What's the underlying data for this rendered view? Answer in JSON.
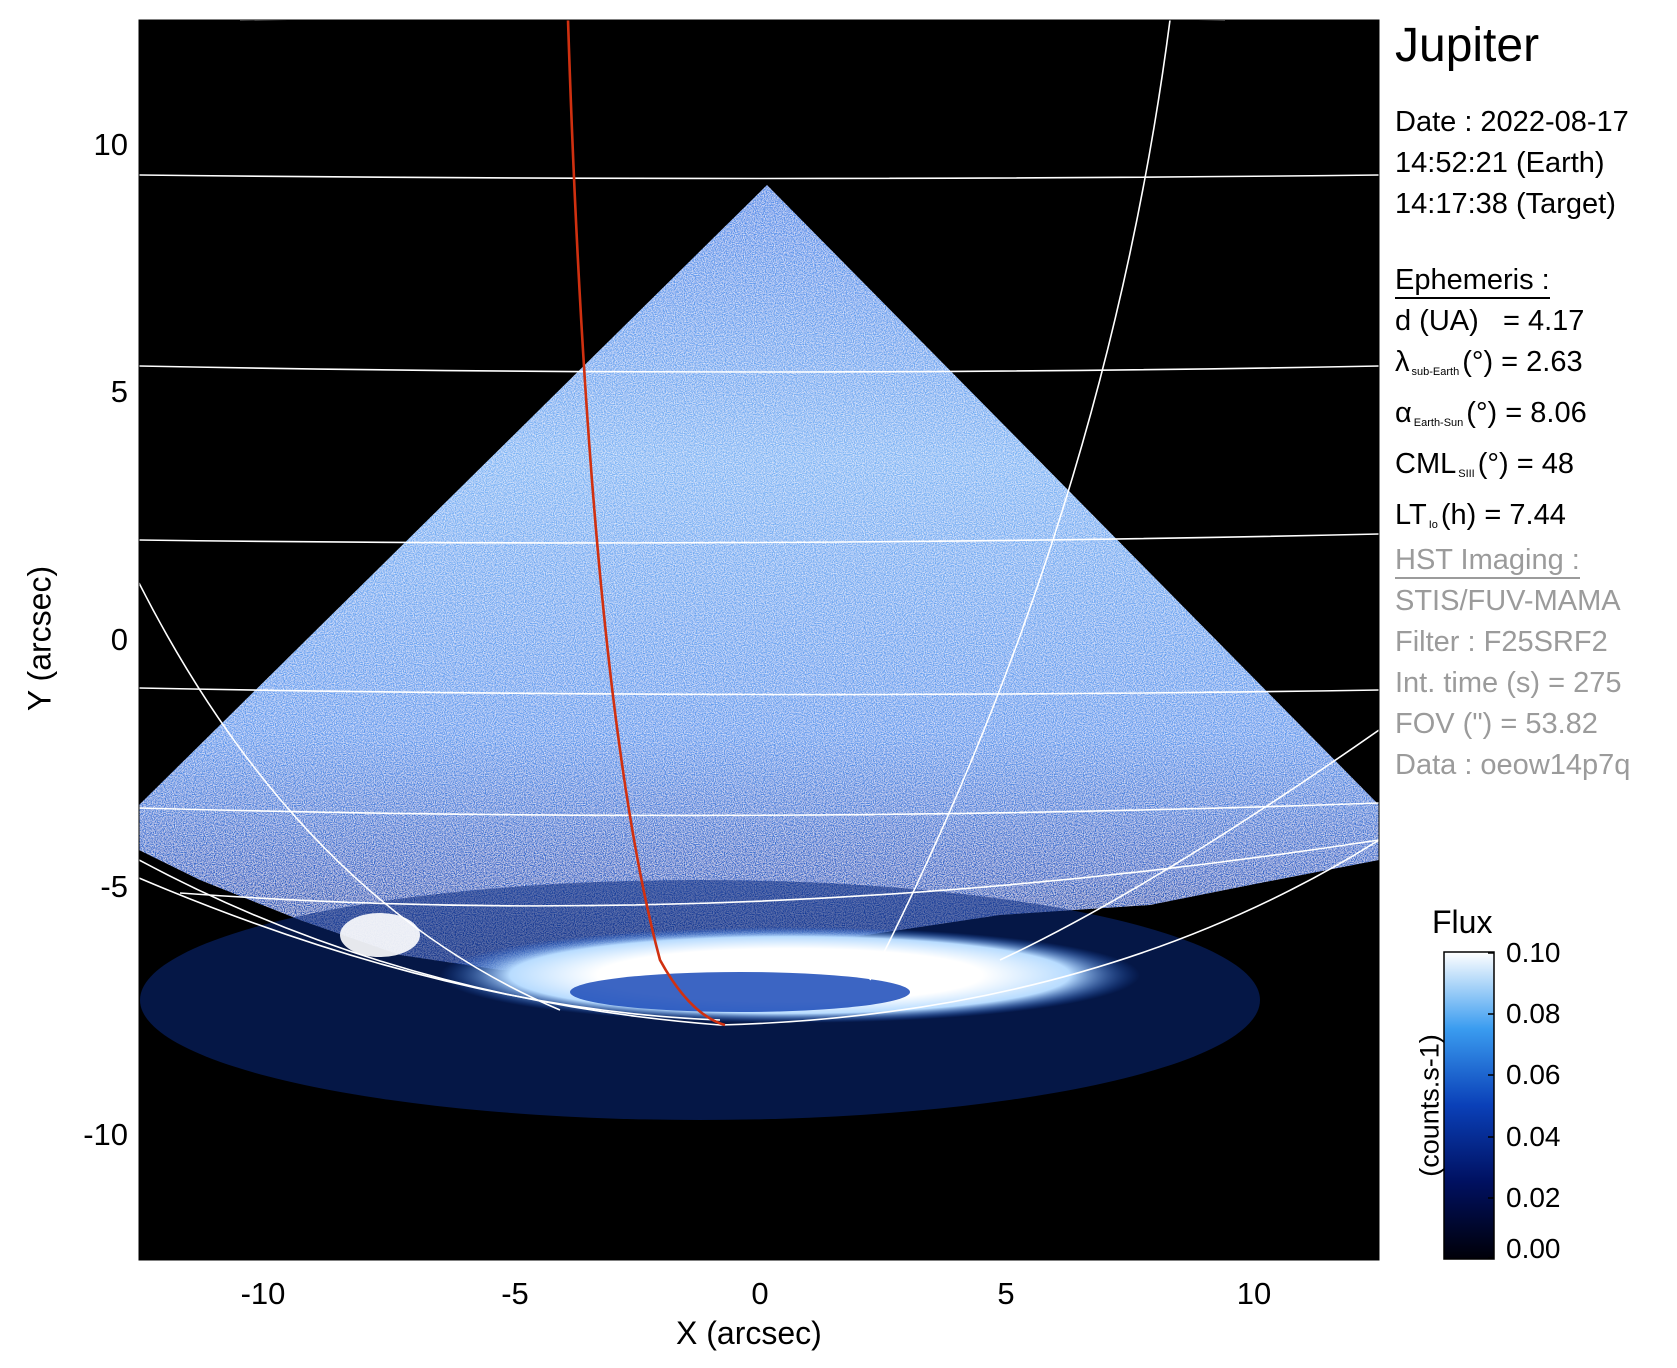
{
  "target": "Jupiter",
  "date": {
    "line1": "Date : 2022-08-17",
    "line2": "14:52:21 (Earth)",
    "line3": "14:17:38 (Target)"
  },
  "ephemeris": {
    "heading": "Ephemeris :",
    "d_label": "d (UA)",
    "d_value": "= 4.17",
    "lat_sym": "λ",
    "lat_sub": "sub-Earth",
    "lat_rest": "(°) = 2.63",
    "phase_sym": "α",
    "phase_sub": "Earth-Sun",
    "phase_rest": "(°) = 8.06",
    "cml_sym": "CML",
    "cml_sub": "SIII",
    "cml_rest": "(°) = 48",
    "lt_sym": "LT",
    "lt_sub": "Io",
    "lt_rest": "(h) = 7.44"
  },
  "hst": {
    "heading": "HST Imaging :",
    "instrument": "STIS/FUV-MAMA",
    "filter": "Filter : F25SRF2",
    "int_time": "Int. time (s) = 275",
    "fov": "FOV (\") = 53.82",
    "data_id": "Data : oeow14p7q"
  },
  "axes": {
    "xlabel": "X (arcsec)",
    "ylabel": "Y (arcsec)",
    "x_range": [
      -12.5,
      12.5
    ],
    "y_range": [
      -12.5,
      12.5
    ],
    "x_ticks": [
      "-10",
      "-5",
      "0",
      "5",
      "10"
    ],
    "y_ticks": [
      "10",
      "5",
      "0",
      "-5",
      "-10"
    ]
  },
  "colorbar": {
    "title": "Flux",
    "unit_label": "(counts.s-1)",
    "range": [
      0.0,
      0.1
    ],
    "ticks": [
      "0.10",
      "0.08",
      "0.06",
      "0.04",
      "0.02",
      "0.00"
    ]
  },
  "colors": {
    "background": "#000000",
    "grid": "#ffffff",
    "io_footprint": "#d03010",
    "cmap_low": "#000010",
    "cmap_mid": "#1e64dc",
    "cmap_high": "#ffffff"
  }
}
